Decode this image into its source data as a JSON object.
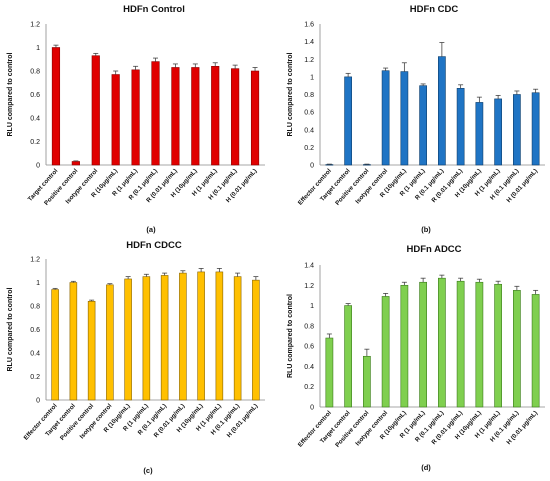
{
  "chart_data": [
    {
      "type": "bar",
      "title": "HDFn Control",
      "caption": "(a)",
      "ylabel": "RLU compared to control",
      "ylim": [
        0,
        1.2
      ],
      "yticks": [
        "0",
        "0.2",
        "0.4",
        "0.6",
        "0.8",
        "1",
        "1.2"
      ],
      "color": "#e00000",
      "stroke": "#8b0000",
      "categories": [
        "Target control",
        "Positive control",
        "Isotype control",
        "R (10μg/mL)",
        "R (1 μg/mL)",
        "R (0.1 μg/mL)",
        "R (0.01 μg/mL)",
        "H (10μg/mL)",
        "H (1 μg/mL)",
        "H (0.1 μg/mL)",
        "H (0.01 μg/mL)"
      ],
      "values": [
        1.0,
        0.03,
        0.93,
        0.77,
        0.81,
        0.88,
        0.83,
        0.83,
        0.84,
        0.82,
        0.8
      ],
      "errors": [
        0.02,
        0.005,
        0.02,
        0.03,
        0.03,
        0.03,
        0.03,
        0.03,
        0.03,
        0.03,
        0.03
      ]
    },
    {
      "type": "bar",
      "title": "HDFn CDC",
      "caption": "(b)",
      "ylabel": "RLU compared to control",
      "ylim": [
        0,
        1.6
      ],
      "yticks": [
        "0",
        "0.2",
        "0.4",
        "0.6",
        "0.8",
        "1",
        "1.2",
        "1.4",
        "1.6"
      ],
      "color": "#1f74c4",
      "stroke": "#0d3d6b",
      "categories": [
        "Effector control",
        "Target control",
        "Positive control",
        "Isotype control",
        "R (10μg/mL)",
        "R (1 μg/mL)",
        "R (0.1 μg/mL)",
        "R (0.01 μg/mL)",
        "H (10μg/mL)",
        "H (1 μg/mL)",
        "H (0.1 μg/mL)",
        "H (0.01 μg/mL)"
      ],
      "values": [
        0.005,
        1.0,
        0.005,
        1.07,
        1.06,
        0.9,
        1.23,
        0.87,
        0.71,
        0.75,
        0.8,
        0.82
      ],
      "errors": [
        0.005,
        0.04,
        0.005,
        0.03,
        0.1,
        0.02,
        0.16,
        0.04,
        0.06,
        0.04,
        0.04,
        0.04
      ]
    },
    {
      "type": "bar",
      "title": "HDFn CDCC",
      "caption": "(c)",
      "ylabel": "RLU compared to control",
      "ylim": [
        0,
        1.2
      ],
      "yticks": [
        "0",
        "0.2",
        "0.4",
        "0.6",
        "0.8",
        "1",
        "1.2"
      ],
      "color": "#ffc000",
      "stroke": "#8a6400",
      "categories": [
        "Effector control",
        "Target control",
        "Positive control",
        "Isotype control",
        "R (10μg/mL)",
        "R (1 μg/mL)",
        "R (0.1 μg/mL)",
        "R (0.01 μg/mL)",
        "H (10μg/mL)",
        "H (1 μg/mL)",
        "H (0.1 μg/mL)",
        "H (0.01 μg/mL)"
      ],
      "values": [
        0.94,
        1.0,
        0.84,
        0.98,
        1.03,
        1.05,
        1.06,
        1.08,
        1.09,
        1.09,
        1.05,
        1.02
      ],
      "errors": [
        0.01,
        0.01,
        0.01,
        0.01,
        0.02,
        0.02,
        0.02,
        0.02,
        0.03,
        0.03,
        0.03,
        0.03
      ]
    },
    {
      "type": "bar",
      "title": "HDFn ADCC",
      "caption": "(d)",
      "ylabel": "RLU compared to control",
      "ylim": [
        0,
        1.4
      ],
      "yticks": [
        "0",
        "0.2",
        "0.4",
        "0.6",
        "0.8",
        "1",
        "1.2",
        "1.4"
      ],
      "color": "#7fcf4f",
      "stroke": "#3a7a1a",
      "categories": [
        "Effector control",
        "Target control",
        "Positive control",
        "Isotype control",
        "R (10μg/mL)",
        "R (1 μg/mL)",
        "R (0.1 μg/mL)",
        "R (0.01 μg/mL)",
        "H (10μg/mL)",
        "H (1 μg/mL)",
        "H (0.1 μg/mL)",
        "H (0.01 μg/mL)"
      ],
      "values": [
        0.68,
        1.0,
        0.5,
        1.09,
        1.2,
        1.23,
        1.27,
        1.24,
        1.23,
        1.21,
        1.15,
        1.11
      ],
      "errors": [
        0.04,
        0.02,
        0.07,
        0.03,
        0.03,
        0.04,
        0.03,
        0.03,
        0.03,
        0.03,
        0.04,
        0.04
      ]
    }
  ]
}
